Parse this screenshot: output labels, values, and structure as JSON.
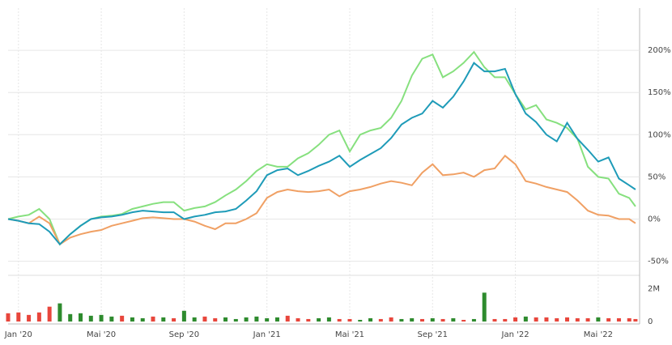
{
  "chart_data": {
    "type": "line",
    "x": [
      -0.5,
      0,
      0.5,
      1,
      1.5,
      2,
      2.5,
      3,
      3.5,
      4,
      4.5,
      5,
      5.5,
      6,
      6.5,
      7,
      7.5,
      8,
      8.5,
      9,
      9.5,
      10,
      10.5,
      11,
      11.5,
      12,
      12.5,
      13,
      13.5,
      14,
      14.5,
      15,
      15.5,
      16,
      16.5,
      17,
      17.5,
      18,
      18.5,
      19,
      19.5,
      20,
      20.5,
      21,
      21.5,
      22,
      22.5,
      23,
      23.5,
      24,
      24.5,
      25,
      25.5,
      26,
      26.5,
      27,
      27.5,
      28,
      28.5,
      29,
      29.5,
      29.8
    ],
    "xlim": [
      -0.5,
      30
    ],
    "xticks": [
      {
        "value": 0,
        "label": "Jan '20"
      },
      {
        "value": 4,
        "label": "Mai '20"
      },
      {
        "value": 8,
        "label": "Sep '20"
      },
      {
        "value": 12,
        "label": "Jan '21"
      },
      {
        "value": 16,
        "label": "Mai '21"
      },
      {
        "value": 20,
        "label": "Sep '21"
      },
      {
        "value": 24,
        "label": "Jan '22"
      },
      {
        "value": 28,
        "label": "Mai '22"
      }
    ],
    "ylim": [
      -60,
      250
    ],
    "yticks": [
      {
        "value": -50,
        "label": "-50%"
      },
      {
        "value": 0,
        "label": "0%"
      },
      {
        "value": 50,
        "label": "50%"
      },
      {
        "value": 100,
        "label": "100%"
      },
      {
        "value": 150,
        "label": "150%"
      },
      {
        "value": 200,
        "label": "200%"
      }
    ],
    "grid": true,
    "series": [
      {
        "color": "#86e07e",
        "values": [
          0,
          3,
          5,
          12,
          0,
          -30,
          -18,
          -8,
          0,
          3,
          4,
          6,
          12,
          15,
          18,
          20,
          20,
          10,
          13,
          15,
          20,
          28,
          35,
          45,
          57,
          65,
          62,
          62,
          72,
          78,
          88,
          100,
          105,
          80,
          100,
          105,
          108,
          120,
          140,
          170,
          190,
          195,
          168,
          175,
          185,
          198,
          180,
          168,
          168,
          148,
          130,
          135,
          118,
          114,
          108,
          95,
          62,
          50,
          48,
          30,
          25,
          15
        ]
      },
      {
        "color": "#f0a064",
        "values": [
          0,
          -2,
          -5,
          3,
          -5,
          -30,
          -22,
          -18,
          -15,
          -13,
          -8,
          -5,
          -2,
          1,
          2,
          1,
          0,
          0,
          -3,
          -8,
          -12,
          -5,
          -5,
          0,
          7,
          25,
          32,
          35,
          33,
          32,
          33,
          35,
          27,
          33,
          35,
          38,
          42,
          45,
          43,
          40,
          55,
          65,
          52,
          53,
          55,
          50,
          58,
          60,
          75,
          65,
          45,
          42,
          38,
          35,
          32,
          22,
          10,
          5,
          4,
          0,
          0,
          -5
        ]
      },
      {
        "color": "#1e9bb8",
        "values": [
          0,
          -2,
          -5,
          -6,
          -15,
          -30,
          -18,
          -8,
          0,
          2,
          3,
          5,
          8,
          10,
          9,
          8,
          8,
          0,
          3,
          5,
          8,
          9,
          12,
          22,
          33,
          52,
          58,
          60,
          52,
          57,
          63,
          68,
          75,
          62,
          70,
          77,
          84,
          96,
          112,
          120,
          125,
          140,
          132,
          145,
          163,
          185,
          175,
          175,
          178,
          148,
          125,
          115,
          100,
          92,
          114,
          95,
          82,
          68,
          73,
          48,
          40,
          35
        ]
      }
    ],
    "volume": {
      "ylim": [
        0,
        2800000
      ],
      "yticks": [
        0,
        {
          "value": 2000000,
          "label": "2M"
        }
      ],
      "values": [
        500000,
        550000,
        400000,
        550000,
        900000,
        1100000,
        450000,
        500000,
        350000,
        400000,
        300000,
        350000,
        250000,
        200000,
        300000,
        250000,
        200000,
        650000,
        250000,
        300000,
        200000,
        250000,
        150000,
        250000,
        300000,
        200000,
        250000,
        350000,
        200000,
        150000,
        200000,
        250000,
        150000,
        150000,
        100000,
        200000,
        150000,
        250000,
        150000,
        200000,
        150000,
        200000,
        150000,
        200000,
        100000,
        150000,
        1750000,
        150000,
        150000,
        250000,
        300000,
        250000,
        250000,
        200000,
        250000,
        200000,
        200000,
        250000,
        200000,
        200000,
        200000,
        150000
      ],
      "colors": [
        "#e8463c",
        "#e8463c",
        "#e8463c",
        "#e8463c",
        "#e8463c",
        "#2e8b2e",
        "#2e8b2e",
        "#2e8b2e",
        "#2e8b2e",
        "#2e8b2e",
        "#2e8b2e",
        "#e8463c",
        "#2e8b2e",
        "#2e8b2e",
        "#e8463c",
        "#2e8b2e",
        "#e8463c",
        "#2e8b2e",
        "#2e8b2e",
        "#e8463c",
        "#e8463c",
        "#2e8b2e",
        "#2e8b2e",
        "#2e8b2e",
        "#2e8b2e",
        "#2e8b2e",
        "#2e8b2e",
        "#e8463c",
        "#e8463c",
        "#e8463c",
        "#2e8b2e",
        "#2e8b2e",
        "#e8463c",
        "#e8463c",
        "#2e8b2e",
        "#2e8b2e",
        "#e8463c",
        "#e8463c",
        "#2e8b2e",
        "#2e8b2e",
        "#e8463c",
        "#2e8b2e",
        "#e8463c",
        "#2e8b2e",
        "#e8463c",
        "#2e8b2e",
        "#2e8b2e",
        "#e8463c",
        "#e8463c",
        "#e8463c",
        "#2e8b2e",
        "#e8463c",
        "#e8463c",
        "#e8463c",
        "#e8463c",
        "#e8463c",
        "#e8463c",
        "#2e8b2e",
        "#e8463c",
        "#e8463c",
        "#e8463c",
        "#e8463c"
      ]
    }
  }
}
